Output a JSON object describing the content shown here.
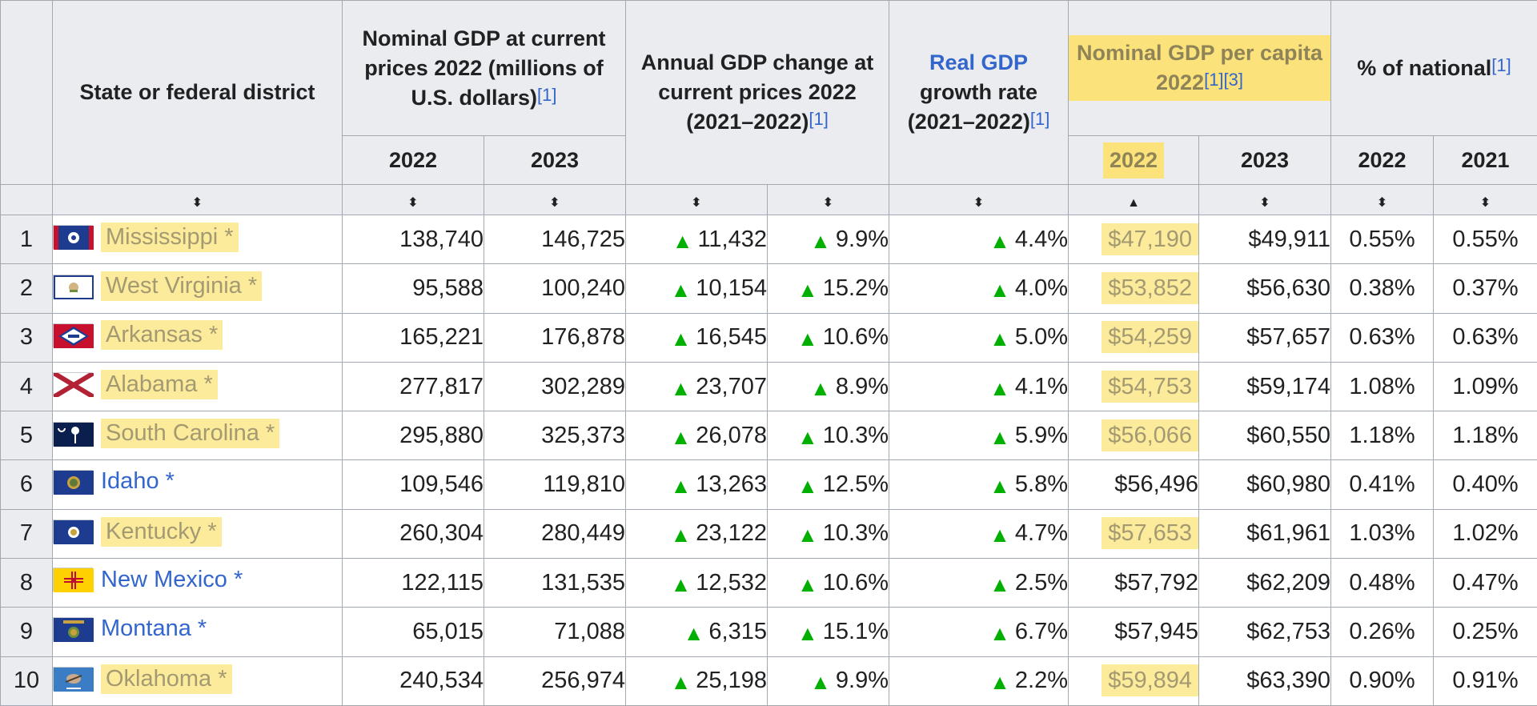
{
  "headers": {
    "state": "State or federal district",
    "nominal_gdp": "Nominal GDP at current prices 2022 (millions of U.S. dollars)",
    "annual_change": "Annual GDP change at current prices 2022 (2021–2022)",
    "real_gdp_link": "Real GDP",
    "real_gdp_rest": "growth rate (2021–2022)",
    "per_capita": "Nominal GDP per capita 2022",
    "pct_national": "% of national",
    "ref1": "[1]",
    "ref1b": "[1]",
    "ref3": "[3]",
    "sub": {
      "nominal_2022": "2022",
      "nominal_2023": "2023",
      "pc_2022": "2022",
      "pc_2023": "2023",
      "pct_2022": "2022",
      "pct_2021": "2021"
    },
    "sort_both": "⬍",
    "sort_asc": "▲"
  },
  "up_arrow": "▲",
  "colors": {
    "highlight": "#fdeb9c",
    "link": "#3366cc",
    "up": "#00af00",
    "header_bg": "#eaecf0",
    "border": "#a2a9b1"
  },
  "rows": [
    {
      "rank": "1",
      "state": "Mississippi *",
      "flag_icon": "mississippi-flag-icon",
      "highlight": true,
      "gdp2022": "138,740",
      "gdp2023": "146,725",
      "change": "11,432",
      "change_pct": "9.9%",
      "real_growth": "4.4%",
      "pc2022": "$47,190",
      "pc_hl": true,
      "pc2023": "$49,911",
      "pct2022": "0.55%",
      "pct2021": "0.55%"
    },
    {
      "rank": "2",
      "state": "West Virginia *",
      "flag_icon": "west-virginia-flag-icon",
      "highlight": true,
      "gdp2022": "95,588",
      "gdp2023": "100,240",
      "change": "10,154",
      "change_pct": "15.2%",
      "real_growth": "4.0%",
      "pc2022": "$53,852",
      "pc_hl": true,
      "pc2023": "$56,630",
      "pct2022": "0.38%",
      "pct2021": "0.37%"
    },
    {
      "rank": "3",
      "state": "Arkansas *",
      "flag_icon": "arkansas-flag-icon",
      "highlight": true,
      "gdp2022": "165,221",
      "gdp2023": "176,878",
      "change": "16,545",
      "change_pct": "10.6%",
      "real_growth": "5.0%",
      "pc2022": "$54,259",
      "pc_hl": true,
      "pc2023": "$57,657",
      "pct2022": "0.63%",
      "pct2021": "0.63%"
    },
    {
      "rank": "4",
      "state": "Alabama *",
      "flag_icon": "alabama-flag-icon",
      "highlight": true,
      "gdp2022": "277,817",
      "gdp2023": "302,289",
      "change": "23,707",
      "change_pct": "8.9%",
      "real_growth": "4.1%",
      "pc2022": "$54,753",
      "pc_hl": true,
      "pc2023": "$59,174",
      "pct2022": "1.08%",
      "pct2021": "1.09%"
    },
    {
      "rank": "5",
      "state": "South Carolina *",
      "flag_icon": "south-carolina-flag-icon",
      "highlight": true,
      "gdp2022": "295,880",
      "gdp2023": "325,373",
      "change": "26,078",
      "change_pct": "10.3%",
      "real_growth": "5.9%",
      "pc2022": "$56,066",
      "pc_hl": true,
      "pc2023": "$60,550",
      "pct2022": "1.18%",
      "pct2021": "1.18%"
    },
    {
      "rank": "6",
      "state": "Idaho *",
      "flag_icon": "idaho-flag-icon",
      "highlight": false,
      "gdp2022": "109,546",
      "gdp2023": "119,810",
      "change": "13,263",
      "change_pct": "12.5%",
      "real_growth": "5.8%",
      "pc2022": "$56,496",
      "pc_hl": false,
      "pc2023": "$60,980",
      "pct2022": "0.41%",
      "pct2021": "0.40%"
    },
    {
      "rank": "7",
      "state": "Kentucky *",
      "flag_icon": "kentucky-flag-icon",
      "highlight": true,
      "gdp2022": "260,304",
      "gdp2023": "280,449",
      "change": "23,122",
      "change_pct": "10.3%",
      "real_growth": "4.7%",
      "pc2022": "$57,653",
      "pc_hl": true,
      "pc2023": "$61,961",
      "pct2022": "1.03%",
      "pct2021": "1.02%"
    },
    {
      "rank": "8",
      "state": "New Mexico *",
      "flag_icon": "new-mexico-flag-icon",
      "highlight": false,
      "gdp2022": "122,115",
      "gdp2023": "131,535",
      "change": "12,532",
      "change_pct": "10.6%",
      "real_growth": "2.5%",
      "pc2022": "$57,792",
      "pc_hl": false,
      "pc2023": "$62,209",
      "pct2022": "0.48%",
      "pct2021": "0.47%"
    },
    {
      "rank": "9",
      "state": "Montana *",
      "flag_icon": "montana-flag-icon",
      "highlight": false,
      "gdp2022": "65,015",
      "gdp2023": "71,088",
      "change": "6,315",
      "change_pct": "15.1%",
      "real_growth": "6.7%",
      "pc2022": "$57,945",
      "pc_hl": false,
      "pc2023": "$62,753",
      "pct2022": "0.26%",
      "pct2021": "0.25%"
    },
    {
      "rank": "10",
      "state": "Oklahoma *",
      "flag_icon": "oklahoma-flag-icon",
      "highlight": true,
      "gdp2022": "240,534",
      "gdp2023": "256,974",
      "change": "25,198",
      "change_pct": "9.9%",
      "real_growth": "2.2%",
      "pc2022": "$59,894",
      "pc_hl": true,
      "pc2023": "$63,390",
      "pct2022": "0.90%",
      "pct2021": "0.91%"
    }
  ]
}
